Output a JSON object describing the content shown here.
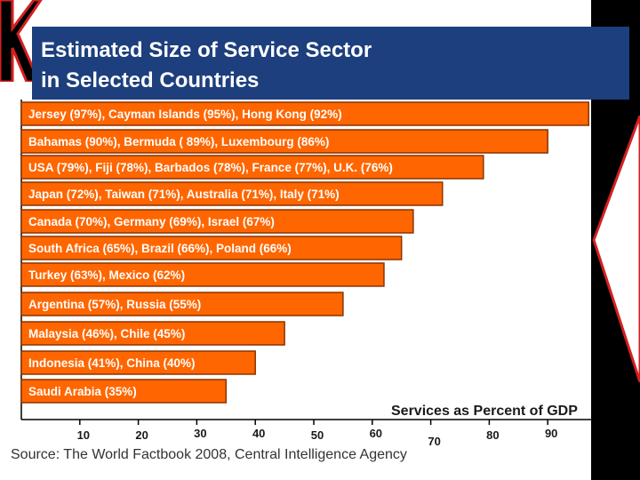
{
  "title": "Estimated Size of Service Sector in Selected Countries",
  "title_lines": [
    "Estimated Size of Service Sector",
    "in Selected Countries"
  ],
  "source": "Source: The World Factbook 2008, Central Intelligence Agency",
  "colors": {
    "bar": "#ff6600",
    "bar_border": "#8a3300",
    "bar_text": "#ffffff",
    "title_bg": "#1d3f7d",
    "title_text": "#ffffff",
    "accent_red": "#d42020",
    "dark": "#000000"
  },
  "chart_data": {
    "type": "bar",
    "orientation": "horizontal",
    "xlabel": "Services as Percent of GDP",
    "xlim": [
      0,
      100
    ],
    "ticks": [
      10,
      20,
      30,
      40,
      50,
      60,
      70,
      80,
      90
    ],
    "tick_labels": [
      "10",
      "20",
      "30",
      "40",
      "50",
      "60",
      "70",
      "80",
      "90"
    ],
    "grid": false,
    "categories": [
      "Jersey (97%), Cayman Islands (95%), Hong Kong (92%)",
      "Bahamas (90%), Bermuda ( 89%), Luxembourg (86%)",
      "USA (79%), Fiji (78%), Barbados (78%), France (77%), U.K. (76%)",
      "Japan (72%), Taiwan (71%), Australia (71%), Italy (71%)",
      "Canada (70%), Germany (69%), Israel (67%)",
      "South Africa (65%), Brazil (66%), Poland (66%)",
      "Turkey (63%), Mexico (62%)",
      "Argentina (57%), Russia (55%)",
      "Malaysia (46%), Chile (45%)",
      "Indonesia (41%), China (40%)",
      "Saudi Arabia (35%)"
    ],
    "values": [
      97,
      90,
      79,
      72,
      67,
      65,
      62,
      55,
      45,
      40,
      35
    ]
  }
}
